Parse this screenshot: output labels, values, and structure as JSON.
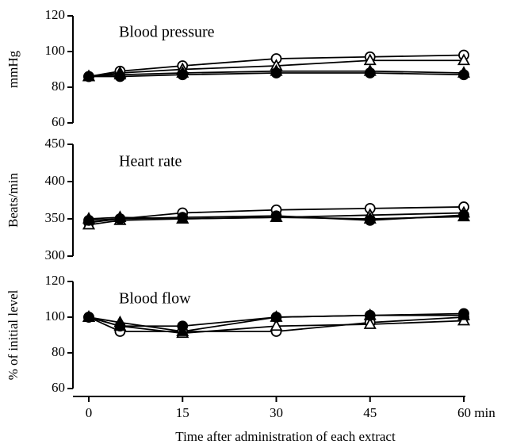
{
  "chart_data": [
    {
      "type": "line",
      "title": "Blood pressure",
      "ylabel": "mmHg",
      "x": [
        0,
        5,
        15,
        30,
        45,
        60
      ],
      "xlim": [
        0,
        60
      ],
      "ylim": [
        60,
        120
      ],
      "yticks": [
        60,
        80,
        100,
        120
      ],
      "series": [
        {
          "marker": "open-circle",
          "color": "#000000",
          "values": [
            86,
            89,
            92,
            96,
            97,
            98
          ]
        },
        {
          "marker": "open-triangle",
          "color": "#000000",
          "values": [
            86,
            88,
            90,
            92,
            95,
            95
          ]
        },
        {
          "marker": "filled-triangle",
          "color": "#000000",
          "values": [
            86,
            87,
            88,
            89,
            89,
            88
          ]
        },
        {
          "marker": "filled-circle",
          "color": "#000000",
          "values": [
            86,
            86,
            87,
            88,
            88,
            87
          ]
        }
      ]
    },
    {
      "type": "line",
      "title": "Heart rate",
      "ylabel": "Beats/min",
      "x": [
        0,
        5,
        15,
        30,
        45,
        60
      ],
      "xlim": [
        0,
        60
      ],
      "ylim": [
        300,
        450
      ],
      "yticks": [
        300,
        350,
        400,
        450
      ],
      "series": [
        {
          "marker": "open-circle",
          "color": "#000000",
          "values": [
            345,
            350,
            358,
            362,
            364,
            366
          ]
        },
        {
          "marker": "open-triangle",
          "color": "#000000",
          "values": [
            342,
            348,
            350,
            352,
            355,
            358
          ]
        },
        {
          "marker": "filled-triangle",
          "color": "#000000",
          "values": [
            350,
            352,
            350,
            352,
            350,
            353
          ]
        },
        {
          "marker": "filled-circle",
          "color": "#000000",
          "values": [
            348,
            350,
            352,
            354,
            348,
            355
          ]
        }
      ]
    },
    {
      "type": "line",
      "title": "Blood flow",
      "ylabel": "% of initial level",
      "xlabel": "Time after administration of each extract",
      "x": [
        0,
        5,
        15,
        30,
        45,
        60
      ],
      "xlim": [
        0,
        60
      ],
      "xticks": [
        0,
        15,
        30,
        45,
        {
          "value": 60,
          "label": "60 min"
        }
      ],
      "ylim": [
        60,
        120
      ],
      "yticks": [
        60,
        80,
        100,
        120
      ],
      "series": [
        {
          "marker": "open-circle",
          "color": "#000000",
          "values": [
            100,
            92,
            92,
            92,
            97,
            100
          ]
        },
        {
          "marker": "open-triangle",
          "color": "#000000",
          "values": [
            100,
            95,
            91,
            95,
            96,
            98
          ]
        },
        {
          "marker": "filled-triangle",
          "color": "#000000",
          "values": [
            100,
            97,
            92,
            100,
            101,
            101
          ]
        },
        {
          "marker": "filled-circle",
          "color": "#000000",
          "values": [
            100,
            95,
            95,
            100,
            101,
            102
          ]
        }
      ]
    }
  ]
}
